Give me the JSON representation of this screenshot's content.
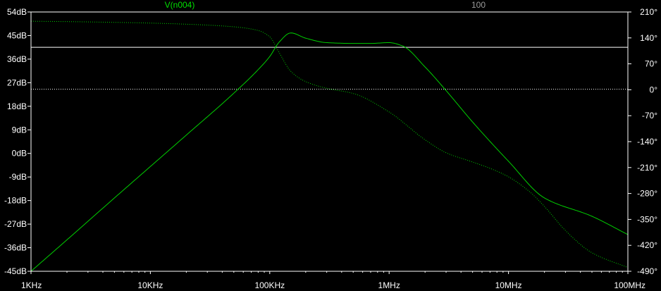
{
  "chart_data": {
    "type": "line",
    "header": {
      "trace_label": "V(n004)",
      "marker_label": "100"
    },
    "x_scale": "log",
    "xlim": [
      1000,
      100000000
    ],
    "x_ticks": [
      {
        "value": 1000,
        "label": "1KHz"
      },
      {
        "value": 10000,
        "label": "10KHz"
      },
      {
        "value": 100000,
        "label": "100KHz"
      },
      {
        "value": 1000000,
        "label": "1MHz"
      },
      {
        "value": 10000000,
        "label": "10MHz"
      },
      {
        "value": 100000000,
        "label": "100MHz"
      }
    ],
    "ylim_left": [
      -45,
      54
    ],
    "y_ticks_left": [
      {
        "value": 54,
        "label": "54dB"
      },
      {
        "value": 45,
        "label": "45dB"
      },
      {
        "value": 36,
        "label": "36dB"
      },
      {
        "value": 27,
        "label": "27dB"
      },
      {
        "value": 18,
        "label": "18dB"
      },
      {
        "value": 9,
        "label": "9dB"
      },
      {
        "value": 0,
        "label": "0dB"
      },
      {
        "value": -9,
        "label": "-9dB"
      },
      {
        "value": -18,
        "label": "-18dB"
      },
      {
        "value": -27,
        "label": "-27dB"
      },
      {
        "value": -36,
        "label": "-36dB"
      },
      {
        "value": -45,
        "label": "-45dB"
      }
    ],
    "ylim_right": [
      -490,
      210
    ],
    "y_ticks_right": [
      {
        "value": 210,
        "label": "210°"
      },
      {
        "value": 140,
        "label": "140°"
      },
      {
        "value": 70,
        "label": "70°"
      },
      {
        "value": 0,
        "label": "0°"
      },
      {
        "value": -70,
        "label": "-70°"
      },
      {
        "value": -140,
        "label": "-140°"
      },
      {
        "value": -210,
        "label": "-210°"
      },
      {
        "value": -280,
        "label": "-280°"
      },
      {
        "value": -350,
        "label": "-350°"
      },
      {
        "value": -420,
        "label": "-420°"
      },
      {
        "value": -490,
        "label": "-490°"
      }
    ],
    "reference_lines": [
      {
        "axis": "left",
        "value": 40.5,
        "style": "solid"
      },
      {
        "axis": "left",
        "value": 24.5,
        "style": "dotted"
      }
    ],
    "series": [
      {
        "axis": "left",
        "style": "solid",
        "x": [
          1000,
          2000,
          5000,
          10000,
          20000,
          50000,
          80000,
          100000,
          120000,
          150000,
          200000,
          300000,
          500000,
          700000,
          1000000,
          1300000,
          2000000,
          3000000,
          5000000,
          10000000,
          20000000,
          50000000,
          100000000
        ],
        "y": [
          -45.0,
          -33.0,
          -17.0,
          -5.0,
          7.0,
          23.0,
          32.0,
          37.0,
          42.5,
          46.0,
          44.0,
          42.3,
          42.0,
          42.0,
          42.3,
          41.0,
          33.0,
          24.0,
          12.0,
          -3.0,
          -17.0,
          -24.0,
          -31.0
        ]
      },
      {
        "axis": "right",
        "style": "dotted",
        "x": [
          1000,
          2000,
          5000,
          10000,
          20000,
          50000,
          80000,
          100000,
          120000,
          150000,
          200000,
          300000,
          500000,
          1000000,
          2000000,
          3000000,
          5000000,
          7000000,
          10000000,
          15000000,
          20000000,
          30000000,
          50000000,
          100000000
        ],
        "y": [
          185.0,
          184.0,
          182.0,
          180.0,
          177.0,
          170.0,
          160.0,
          143.0,
          100.0,
          50.0,
          22.0,
          4.0,
          -10.0,
          -60.0,
          -135.0,
          -170.0,
          -195.0,
          -212.0,
          -235.0,
          -275.0,
          -315.0,
          -380.0,
          -440.0,
          -480.0
        ]
      }
    ],
    "colors": {
      "background": "#000000",
      "axis": "#ffffff",
      "trace": "#00d000",
      "trace_dotted": "#00c800",
      "reference": "#ffffff",
      "trace_label": "#00e000",
      "marker_label": "#9a9a9a",
      "tick_label": "#ffffff"
    }
  }
}
